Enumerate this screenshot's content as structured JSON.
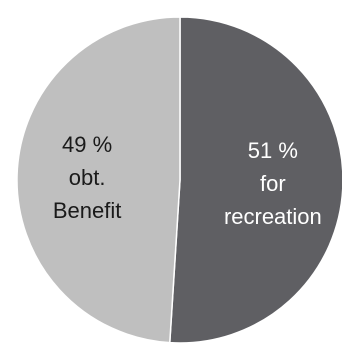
{
  "chart_data": {
    "type": "pie",
    "title": "",
    "start_angle_deg": 0,
    "direction": "clockwise",
    "slices": [
      {
        "label_lines": [
          "51 %",
          "for",
          "recreation"
        ],
        "value": 51,
        "color": "#5f5f63",
        "label_color": "#ffffff"
      },
      {
        "label_lines": [
          "49 %",
          "obt.",
          "Benefit"
        ],
        "value": 49,
        "color": "#bfbfbf",
        "label_color": "#1a1a1a"
      }
    ],
    "border_color": "#ffffff",
    "grid": false,
    "legend": "none"
  }
}
